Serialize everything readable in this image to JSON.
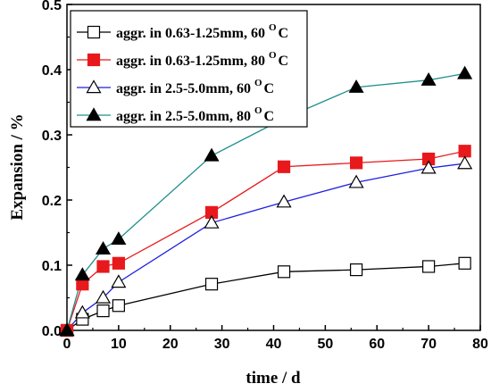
{
  "chart_data": {
    "type": "line",
    "xlabel": "time / d",
    "ylabel": "Expansion / %",
    "xlim": [
      0,
      80
    ],
    "ylim": [
      0,
      0.5
    ],
    "xticks": [
      "0",
      "10",
      "20",
      "30",
      "40",
      "50",
      "60",
      "70",
      "80"
    ],
    "yticks": [
      "0.0",
      "0.1",
      "0.2",
      "0.3",
      "0.4",
      "0.5"
    ],
    "grid": false,
    "legend_position": "top-left",
    "series": [
      {
        "name": "aggr. in 0.63-1.25mm, 60 ",
        "name_sup": "O",
        "name_suffix": "C",
        "color": "#000000",
        "marker": "square-open",
        "x": [
          0,
          3,
          7,
          10,
          28,
          42,
          56,
          70,
          77
        ],
        "y": [
          0.0,
          0.017,
          0.03,
          0.038,
          0.071,
          0.09,
          0.093,
          0.098,
          0.103
        ]
      },
      {
        "name": "aggr. in 0.63-1.25mm, 80 ",
        "name_sup": "O",
        "name_suffix": "C",
        "color": "#e8191c",
        "marker": "square-filled",
        "x": [
          0,
          3,
          7,
          10,
          28,
          42,
          56,
          70,
          77
        ],
        "y": [
          0.0,
          0.071,
          0.098,
          0.103,
          0.181,
          0.251,
          0.257,
          0.263,
          0.275
        ]
      },
      {
        "name": "aggr. in 2.5-5.0mm, 60 ",
        "name_sup": "O",
        "name_suffix": "C",
        "color": "#1f1fe0",
        "marker": "triangle-open",
        "x": [
          0,
          3,
          7,
          10,
          28,
          42,
          56,
          70,
          77
        ],
        "y": [
          0.0,
          0.027,
          0.05,
          0.074,
          0.165,
          0.197,
          0.227,
          0.249,
          0.256
        ]
      },
      {
        "name": "aggr. in 2.5-5.0mm, 80 ",
        "name_sup": "O",
        "name_suffix": "C",
        "color": "#1f8f8f",
        "marker": "triangle-filled",
        "x": [
          0,
          3,
          7,
          10,
          28,
          42,
          56,
          70,
          77
        ],
        "y": [
          0.0,
          0.085,
          0.125,
          0.14,
          0.268,
          0.325,
          0.373,
          0.384,
          0.394
        ]
      }
    ]
  }
}
